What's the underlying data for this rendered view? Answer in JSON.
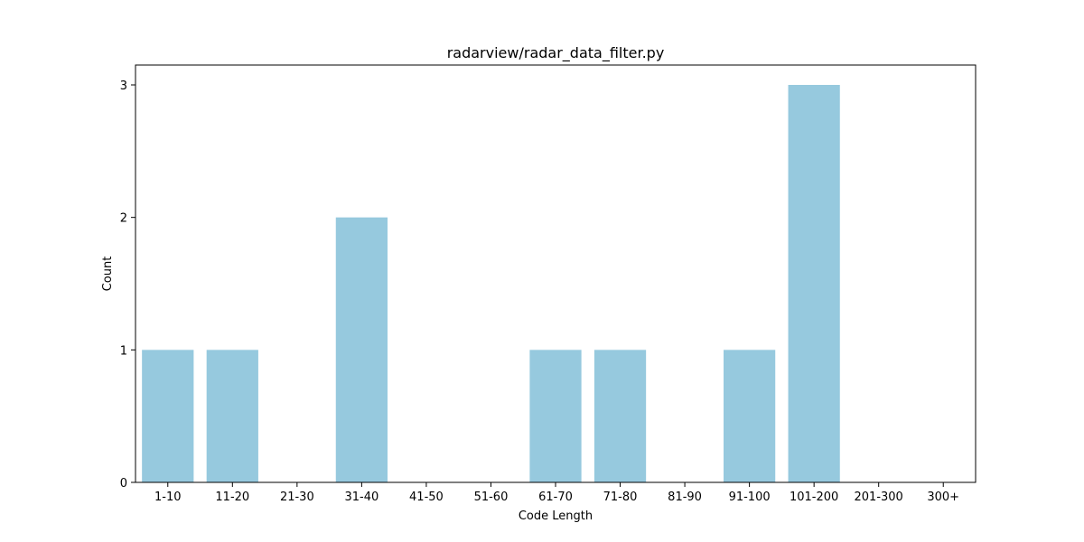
{
  "chart_data": {
    "type": "bar",
    "title": "radarview/radar_data_filter.py",
    "xlabel": "Code Length",
    "ylabel": "Count",
    "categories": [
      "1-10",
      "11-20",
      "21-30",
      "31-40",
      "41-50",
      "51-60",
      "61-70",
      "71-80",
      "81-90",
      "91-100",
      "101-200",
      "201-300",
      "300+"
    ],
    "values": [
      1,
      1,
      0,
      2,
      0,
      0,
      1,
      1,
      0,
      1,
      3,
      0,
      0
    ],
    "yticks": [
      0,
      1,
      2,
      3
    ],
    "ylim": [
      0,
      3.15
    ],
    "grid": false,
    "bar_color": "#96c9de"
  }
}
